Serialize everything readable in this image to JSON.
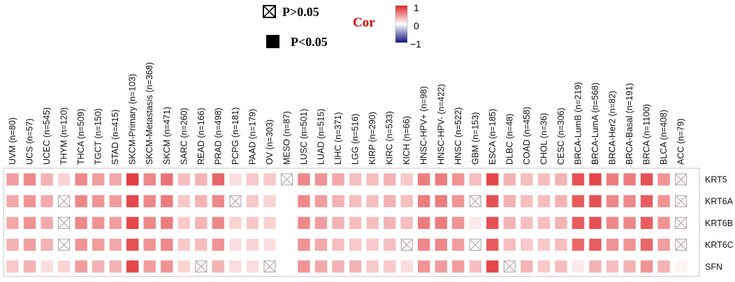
{
  "chart_data": {
    "type": "heatmap",
    "legend": {
      "symbol_ns_label": "P>0.05",
      "symbol_sig_label": "P<0.05",
      "cor_label": "Cor",
      "colorbar_ticks": [
        "1",
        "0",
        "−1"
      ],
      "colors": {
        "high": "#e0262a",
        "mid": "#ffffff",
        "low": "#12127a",
        "cor_text": "#d40000"
      }
    },
    "columns": [
      "UVM (n=80)",
      "UCS (n=57)",
      "UCEC (n=545)",
      "THYM (n=120)",
      "THCA (n=509)",
      "TGCT (n=150)",
      "STAD (n=415)",
      "SKCM-Primary (n=103)",
      "SKCM-Metastasis (n=368)",
      "SKCM (n=471)",
      "SARC (n=260)",
      "READ (n=166)",
      "PRAD (n=498)",
      "PCPG (n=181)",
      "PAAD (n=179)",
      "OV (n=303)",
      "MESO (n=87)",
      "LUSC (n=501)",
      "LUAD (n=515)",
      "LIHC (n=371)",
      "LGG (n=516)",
      "KIRP (n=290)",
      "KIRC (n=533)",
      "KICH (n=66)",
      "HNSC-HPV+ (n=98)",
      "HNSC-HPV- (n=422)",
      "HNSC (n=522)",
      "GBM (n=153)",
      "ESCA (n=185)",
      "DLBC (n=48)",
      "COAD (n=458)",
      "CHOL (n=36)",
      "CESC (n=306)",
      "BRCA-LumB (n=219)",
      "BRCA-LumA (n=568)",
      "BRCA-Her2 (n=82)",
      "BRCA-Basal (n=191)",
      "BRCA (n=1100)",
      "BLCA (n=408)",
      "ACC (n=79)"
    ],
    "rows": [
      "KRT5",
      "KRT6A",
      "KRT6B",
      "KRT6C",
      "SFN"
    ],
    "values": [
      [
        0.45,
        0.55,
        0.35,
        0.2,
        0.55,
        0.45,
        0.4,
        0.9,
        0.55,
        0.65,
        0.3,
        0.35,
        0.7,
        0.15,
        0.25,
        0.25,
        0.0,
        0.55,
        0.5,
        0.4,
        0.3,
        0.3,
        0.35,
        0.25,
        0.6,
        0.6,
        0.5,
        0.3,
        0.85,
        0.35,
        0.3,
        0.3,
        0.35,
        0.8,
        0.85,
        0.6,
        0.6,
        0.8,
        0.5,
        0.05
      ],
      [
        0.4,
        0.5,
        0.4,
        0.05,
        0.55,
        0.5,
        0.45,
        0.85,
        0.55,
        0.6,
        0.25,
        0.35,
        0.55,
        0.05,
        0.25,
        0.2,
        0.0,
        0.55,
        0.45,
        0.35,
        0.3,
        0.3,
        0.35,
        0.3,
        0.6,
        0.6,
        0.5,
        0.05,
        0.8,
        0.35,
        0.3,
        0.3,
        0.35,
        0.75,
        0.8,
        0.55,
        0.55,
        0.75,
        0.5,
        0.05
      ],
      [
        0.4,
        0.5,
        0.4,
        0.05,
        0.55,
        0.5,
        0.45,
        0.85,
        0.55,
        0.6,
        0.25,
        0.35,
        0.55,
        0.2,
        0.25,
        0.2,
        0.0,
        0.55,
        0.45,
        0.35,
        0.3,
        0.3,
        0.35,
        0.3,
        0.6,
        0.6,
        0.5,
        0.1,
        0.8,
        0.35,
        0.3,
        0.3,
        0.35,
        0.75,
        0.8,
        0.55,
        0.55,
        0.75,
        0.5,
        0.05
      ],
      [
        0.35,
        0.45,
        0.35,
        0.02,
        0.5,
        0.45,
        0.4,
        0.8,
        0.5,
        0.55,
        0.25,
        0.3,
        0.5,
        0.15,
        0.2,
        0.15,
        0.0,
        0.5,
        0.4,
        0.3,
        0.25,
        0.25,
        0.3,
        0.05,
        0.55,
        0.55,
        0.45,
        0.02,
        0.75,
        0.3,
        0.25,
        0.25,
        0.3,
        0.7,
        0.75,
        0.5,
        0.5,
        0.7,
        0.45,
        0.05
      ],
      [
        0.25,
        0.35,
        0.15,
        0.2,
        0.45,
        0.35,
        0.35,
        0.85,
        0.45,
        0.5,
        0.2,
        0.05,
        0.35,
        0.15,
        0.15,
        0.05,
        0.0,
        0.5,
        0.4,
        0.35,
        0.35,
        0.25,
        0.25,
        0.15,
        0.5,
        0.45,
        0.45,
        0.3,
        0.85,
        0.05,
        0.35,
        0.25,
        0.3,
        0.1,
        0.35,
        0.3,
        0.35,
        0.5,
        0.35,
        0.05
      ]
    ],
    "nonsig_marks": [
      [
        0,
        16
      ],
      [
        0,
        39
      ],
      [
        1,
        3
      ],
      [
        1,
        13
      ],
      [
        1,
        27
      ],
      [
        1,
        39
      ],
      [
        2,
        3
      ],
      [
        2,
        39
      ],
      [
        3,
        3
      ],
      [
        3,
        23
      ],
      [
        3,
        27
      ],
      [
        3,
        39
      ],
      [
        4,
        11
      ],
      [
        4,
        15
      ],
      [
        4,
        29
      ]
    ],
    "blank_cells": [
      [
        1,
        16
      ],
      [
        2,
        16
      ],
      [
        3,
        16
      ],
      [
        4,
        16
      ]
    ],
    "vmin": -1,
    "vmax": 1
  }
}
